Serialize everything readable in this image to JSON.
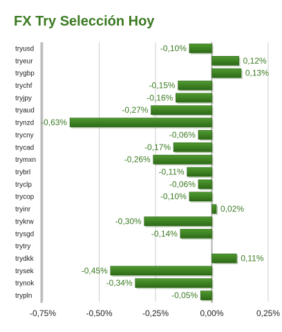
{
  "chart_data": {
    "type": "bar",
    "orientation": "horizontal",
    "title": "FX Try Selección Hoy",
    "categories": [
      "tryusd",
      "tryeur",
      "trygbp",
      "trychf",
      "tryjpy",
      "tryaud",
      "trynzd",
      "trycny",
      "trycad",
      "trymxn",
      "trybrl",
      "tryclp",
      "trycop",
      "tryinr",
      "trykrw",
      "trysgd",
      "trytry",
      "trydkk",
      "trysek",
      "trynok",
      "trypln"
    ],
    "values": [
      -0.1,
      0.12,
      0.13,
      -0.15,
      -0.16,
      -0.27,
      -0.63,
      -0.06,
      -0.17,
      -0.26,
      -0.11,
      -0.06,
      -0.1,
      0.02,
      -0.3,
      -0.14,
      null,
      0.11,
      -0.45,
      -0.34,
      -0.05
    ],
    "value_labels": [
      "-0,10%",
      "0,12%",
      "0,13%",
      "-0,15%",
      "-0,16%",
      "-0,27%",
      "-0,63%",
      "-0,06%",
      "-0,17%",
      "-0,26%",
      "-0,11%",
      "-0,06%",
      "-0,10%",
      "0,02%",
      "-0,30%",
      "-0,14%",
      "",
      "0,11%",
      "-0,45%",
      "-0,34%",
      "-0,05%"
    ],
    "xlim": [
      -0.75,
      0.25
    ],
    "x_ticks": [
      -0.75,
      -0.5,
      -0.25,
      0,
      0.25
    ],
    "x_tick_labels": [
      "-0,75%",
      "-0,50%",
      "-0,25%",
      "0,00%",
      "0,25%"
    ],
    "grid": true,
    "bar_color": "#3b7a22",
    "label_color": "#3b7a22"
  }
}
